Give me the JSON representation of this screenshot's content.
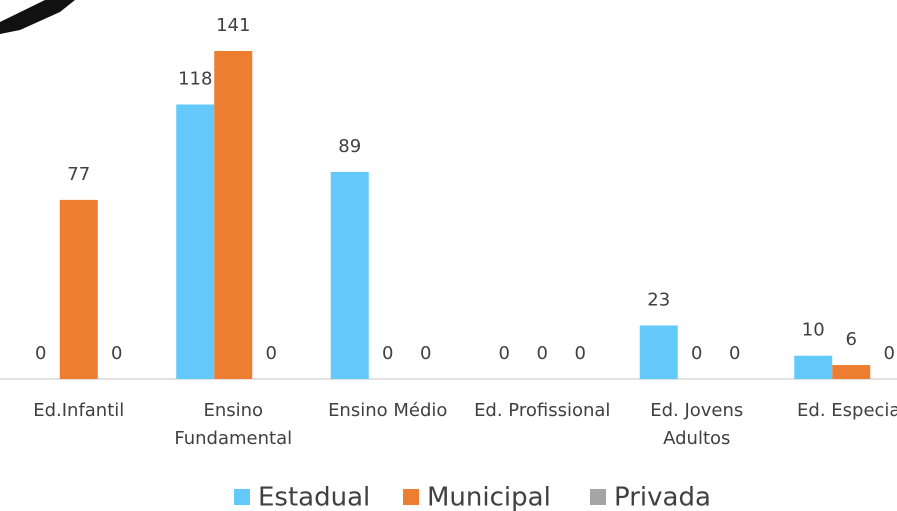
{
  "chart_data": {
    "type": "bar",
    "categories": [
      "Ed.Infantil",
      "Ensino Fundamental",
      "Ensino Médio",
      "Ed. Profissional",
      "Ed. Jovens Adultos",
      "Ed. Especial"
    ],
    "series": [
      {
        "name": "Estadual",
        "color": "#63c8fa",
        "values": [
          0,
          118,
          89,
          0,
          23,
          10
        ]
      },
      {
        "name": "Municipal",
        "color": "#ed7d31",
        "values": [
          77,
          141,
          0,
          0,
          0,
          6
        ]
      },
      {
        "name": "Privada",
        "color": "#a5a5a5",
        "values": [
          0,
          0,
          0,
          0,
          0,
          0
        ]
      }
    ],
    "legend": "bottom"
  }
}
